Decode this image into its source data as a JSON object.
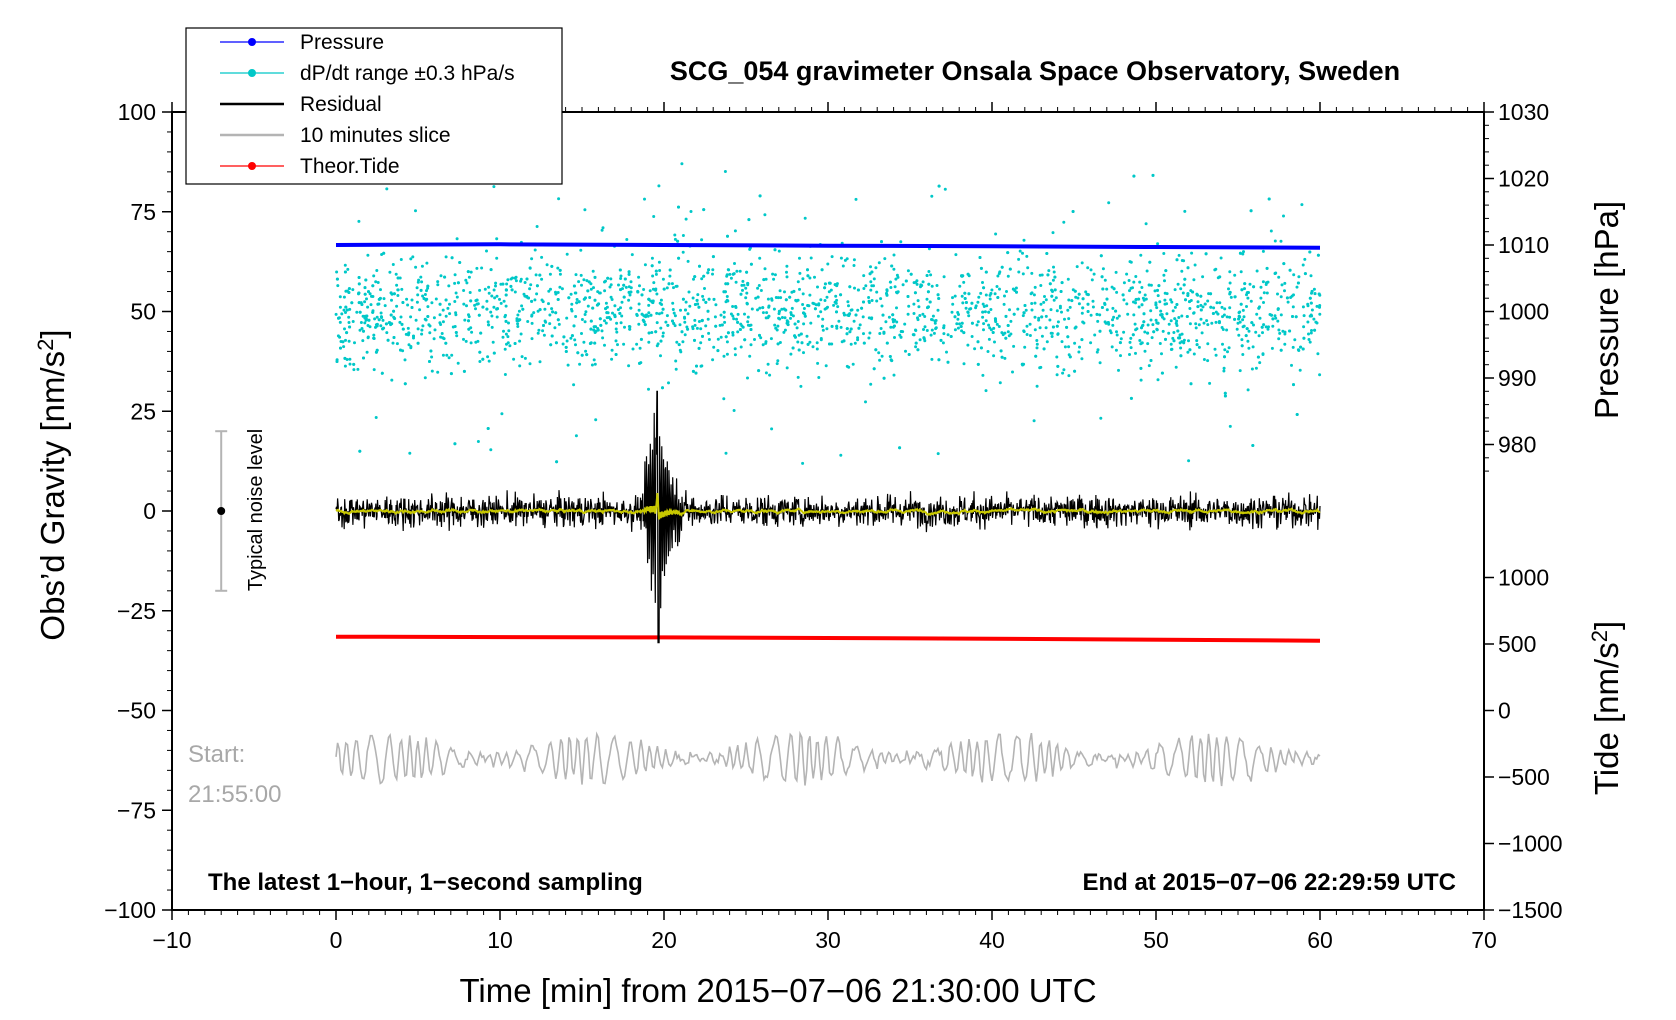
{
  "chart_data": {
    "type": "line",
    "title": "SCG_054 gravimeter Onsala Space Observatory, Sweden",
    "xlabel": "Time [min] from 2015−07−06 21:30:00 UTC",
    "ylabel_left": "Obs’d Gravity [nm/s",
    "ylabel_left_sup": "2",
    "ylabel_left_close": "]",
    "ylabel_right_pressure": "Pressure [hPa]",
    "ylabel_right_tide": "Tide [nm/s",
    "ylabel_right_tide_sup": "2",
    "ylabel_right_tide_close": "]",
    "xlim": [
      -10,
      70
    ],
    "ylim_gravity": [
      -100,
      100
    ],
    "ylim_pressure_axis": [
      975,
      1030
    ],
    "ylim_tide_axis": [
      -1500,
      1000
    ],
    "x_ticks": [
      {
        "v": -10,
        "t": "−10"
      },
      {
        "v": 0,
        "t": "0"
      },
      {
        "v": 10,
        "t": "10"
      },
      {
        "v": 20,
        "t": "20"
      },
      {
        "v": 30,
        "t": "30"
      },
      {
        "v": 40,
        "t": "40"
      },
      {
        "v": 50,
        "t": "50"
      },
      {
        "v": 60,
        "t": "60"
      },
      {
        "v": 70,
        "t": "70"
      }
    ],
    "y_ticks_gravity": [
      {
        "v": 100,
        "t": "100"
      },
      {
        "v": 75,
        "t": "75"
      },
      {
        "v": 50,
        "t": "50"
      },
      {
        "v": 25,
        "t": "25"
      },
      {
        "v": 0,
        "t": "0"
      },
      {
        "v": -25,
        "t": "−25"
      },
      {
        "v": -50,
        "t": "−50"
      },
      {
        "v": -75,
        "t": "−75"
      },
      {
        "v": -100,
        "t": "−100"
      }
    ],
    "y_ticks_pressure": [
      {
        "v": 1030,
        "t": "1030"
      },
      {
        "v": 1020,
        "t": "1020"
      },
      {
        "v": 1010,
        "t": "1010"
      },
      {
        "v": 1000,
        "t": "1000"
      },
      {
        "v": 990,
        "t": "990"
      },
      {
        "v": 980,
        "t": "980"
      }
    ],
    "y_ticks_tide": [
      {
        "v": 1000,
        "t": "1000"
      },
      {
        "v": 500,
        "t": "500"
      },
      {
        "v": 0,
        "t": "0"
      },
      {
        "v": -500,
        "t": "−500"
      },
      {
        "v": -1000,
        "t": "−1000"
      },
      {
        "v": -1500,
        "t": "−1500"
      }
    ],
    "legend": [
      {
        "name": "Pressure",
        "color": "#0000ff",
        "marker": true
      },
      {
        "name": "dP/dt range ±0.3 hPa/s",
        "color": "#00c8c8",
        "marker": true
      },
      {
        "name": "Residual",
        "color": "#000000",
        "marker": false
      },
      {
        "name": "10 minutes slice",
        "color": "#b4b4b4",
        "marker": false
      },
      {
        "name": "Theor.Tide",
        "color": "#ff0000",
        "marker": true
      }
    ],
    "series": {
      "pressure": {
        "name": "Pressure",
        "color": "#0000ff",
        "x": [
          0,
          10,
          20,
          30,
          40,
          50,
          60
        ],
        "values": [
          1010.0,
          1010.1,
          1010.0,
          1009.9,
          1009.8,
          1009.7,
          1009.6
        ]
      },
      "dpdt": {
        "name": "dP/dt range ±0.3 hPa/s",
        "color": "#00c8c8",
        "center_gravity": 50,
        "spread": 30
      },
      "residual": {
        "name": "Residual",
        "color": "#000000",
        "x_range": [
          0,
          60
        ],
        "typical_amplitude": 5,
        "event": {
          "x": 19.6,
          "max": 30,
          "min": -33
        }
      },
      "smoothed": {
        "color": "#c8c800",
        "x_range": [
          0,
          60
        ]
      },
      "slice": {
        "name": "10 minutes slice",
        "color": "#b4b4b4",
        "center_gravity": -62
      },
      "tide": {
        "name": "Theor.Tide",
        "color": "#ff0000",
        "x": [
          0,
          20,
          40,
          60
        ],
        "values": [
          555,
          550,
          540,
          525
        ]
      }
    },
    "noise_bar": {
      "label": "Typical noise level",
      "x": -7,
      "center": 0,
      "half_range": 20
    },
    "start_label": "Start:",
    "start_time": "21:55:00",
    "note_left": "The latest 1−hour, 1−second sampling",
    "note_right": "End at 2015−07−06 22:29:59 UTC"
  }
}
